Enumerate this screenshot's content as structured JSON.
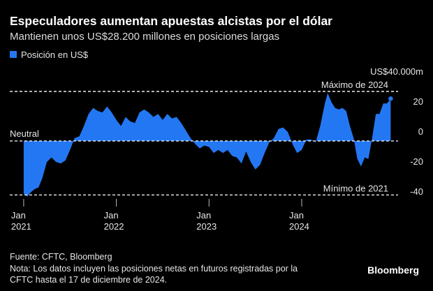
{
  "chart_data": {
    "type": "area",
    "title": "Especuladores aumentan apuestas alcistas por el dólar",
    "subtitle": "Mantienen unos US$28.200 millones en posiciones largas",
    "series": [
      {
        "name": "Posición en US$",
        "color": "#2477f2",
        "x": [
          2021.0,
          2021.04,
          2021.08,
          2021.12,
          2021.16,
          2021.2,
          2021.25,
          2021.3,
          2021.35,
          2021.4,
          2021.45,
          2021.5,
          2021.55,
          2021.6,
          2021.65,
          2021.7,
          2021.75,
          2021.8,
          2021.85,
          2021.9,
          2021.95,
          2022.0,
          2022.05,
          2022.1,
          2022.15,
          2022.2,
          2022.25,
          2022.3,
          2022.35,
          2022.4,
          2022.45,
          2022.5,
          2022.55,
          2022.6,
          2022.65,
          2022.7,
          2022.75,
          2022.8,
          2022.85,
          2022.9,
          2022.95,
          2023.0,
          2023.05,
          2023.1,
          2023.15,
          2023.2,
          2023.25,
          2023.3,
          2023.35,
          2023.4,
          2023.45,
          2023.5,
          2023.55,
          2023.6,
          2023.65,
          2023.7,
          2023.75,
          2023.8,
          2023.85,
          2023.9,
          2023.95,
          2024.0,
          2024.05,
          2024.1,
          2024.15,
          2024.2,
          2024.25,
          2024.28,
          2024.32,
          2024.36,
          2024.4,
          2024.44,
          2024.48,
          2024.52,
          2024.56,
          2024.6,
          2024.64,
          2024.68,
          2024.72,
          2024.76,
          2024.8,
          2024.84,
          2024.88,
          2024.92,
          2024.96
        ],
        "values": [
          -35,
          -37,
          -34,
          -32,
          -31,
          -25,
          -14,
          -11,
          -14,
          -15,
          -13,
          -6,
          2,
          3,
          10,
          18,
          22,
          20,
          19,
          23,
          19,
          14,
          10,
          16,
          13,
          12,
          19,
          21,
          19,
          16,
          18,
          14,
          18,
          15,
          16,
          12,
          7,
          2,
          -2,
          -5,
          -3,
          -4,
          -8,
          -6,
          -8,
          -6,
          -10,
          -11,
          -15,
          -7,
          -14,
          -19,
          -16,
          -8,
          -1,
          2,
          8,
          9,
          6,
          -2,
          -8,
          -6,
          1,
          1,
          -1,
          10,
          25,
          32,
          26,
          22,
          21,
          22,
          20,
          10,
          2,
          -12,
          -17,
          -11,
          -12,
          2,
          18,
          18,
          25,
          25,
          28.2
        ]
      }
    ],
    "xlim": [
      2020.85,
      2025.04
    ],
    "xticks": [
      {
        "value": 2021,
        "label": "Jan 2021"
      },
      {
        "value": 2022,
        "label": "Jan 2022"
      },
      {
        "value": 2023,
        "label": "Jan 2023"
      },
      {
        "value": 2024,
        "label": "Jan 2024"
      }
    ],
    "ylim": [
      -45,
      40
    ],
    "yticks": [
      {
        "value": 40,
        "label": "US$40.000m"
      },
      20,
      0,
      -20,
      -40
    ],
    "reference_lines": [
      {
        "label": "Máximo de 2024",
        "value": 33
      },
      {
        "label": "Neutral",
        "value": 0
      },
      {
        "label": "Mínimo de 2021",
        "value": -36
      }
    ],
    "source": "Fuente: CFTC, Bloomberg",
    "note": [
      "Nota: Los datos incluyen las posiciones netas en futuros registradas por la",
      "CFTC hasta el 17 de diciembre de 2024."
    ],
    "brand": "Bloomberg"
  }
}
